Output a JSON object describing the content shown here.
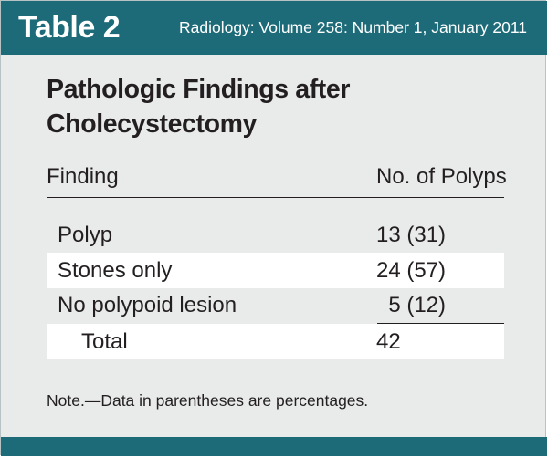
{
  "header": {
    "table_label": "Table 2",
    "citation": "Radiology: Volume 258: Number 1, January 2011"
  },
  "title": "Pathologic Findings after Cholecystectomy",
  "columns": {
    "finding": "Finding",
    "count": "No. of Polyps"
  },
  "rows": [
    {
      "finding": "Polyp",
      "count": "13 (31)"
    },
    {
      "finding": "Stones only",
      "count": "24 (57)"
    },
    {
      "finding": "No polypoid lesion",
      "count": "  5 (12)"
    },
    {
      "finding": "Total",
      "count": "42"
    }
  ],
  "note": "Note.—Data in parentheses are percentages.",
  "colors": {
    "header_band": "#1d6b78",
    "panel_background": "#e9ebeb",
    "row_shading": "#ffffff",
    "text": "#231f20"
  }
}
